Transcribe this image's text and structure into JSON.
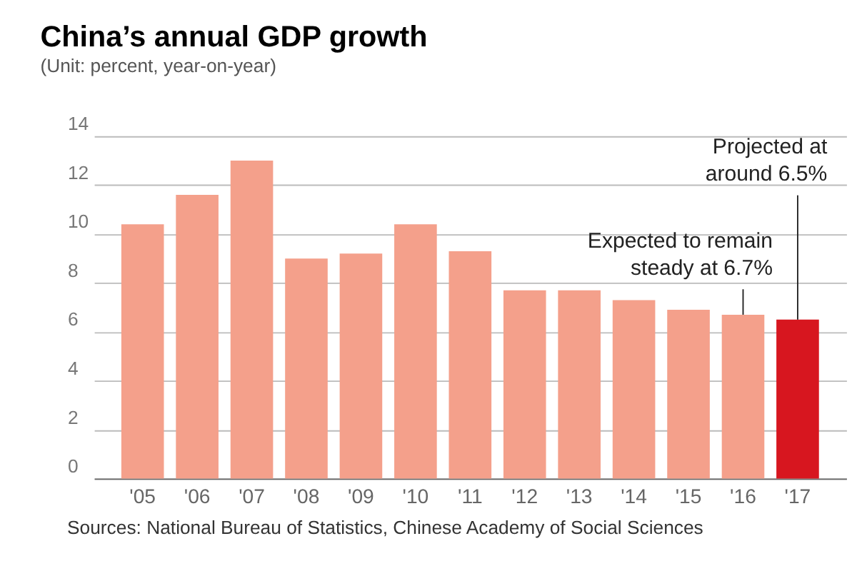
{
  "chart_data": {
    "type": "bar",
    "title": "China’s annual GDP growth",
    "subtitle": "(Unit: percent, year-on-year)",
    "categories": [
      "'05",
      "'06",
      "'07",
      "'08",
      "'09",
      "'10",
      "'11",
      "'12",
      "'13",
      "'14",
      "'15",
      "'16",
      "'17"
    ],
    "values": [
      10.4,
      11.6,
      13.0,
      9.0,
      9.2,
      10.4,
      9.3,
      7.7,
      7.7,
      7.3,
      6.9,
      6.7,
      6.5
    ],
    "colors": [
      "#f4a08b",
      "#f4a08b",
      "#f4a08b",
      "#f4a08b",
      "#f4a08b",
      "#f4a08b",
      "#f4a08b",
      "#f4a08b",
      "#f4a08b",
      "#f4a08b",
      "#f4a08b",
      "#f4a08b",
      "#d7161f"
    ],
    "ylim": [
      0,
      14
    ],
    "yticks": [
      0,
      2,
      4,
      6,
      8,
      10,
      12,
      14
    ],
    "grid": "y",
    "annotations": [
      {
        "text": "Expected to remain steady at 6.7%",
        "x": "'16",
        "y": 6.7
      },
      {
        "text": "Projected at around 6.5%",
        "x": "'17",
        "y": 6.5
      },
      "Sources: National Bureau of Statistics, Chinese Academy of Social Sciences"
    ]
  }
}
